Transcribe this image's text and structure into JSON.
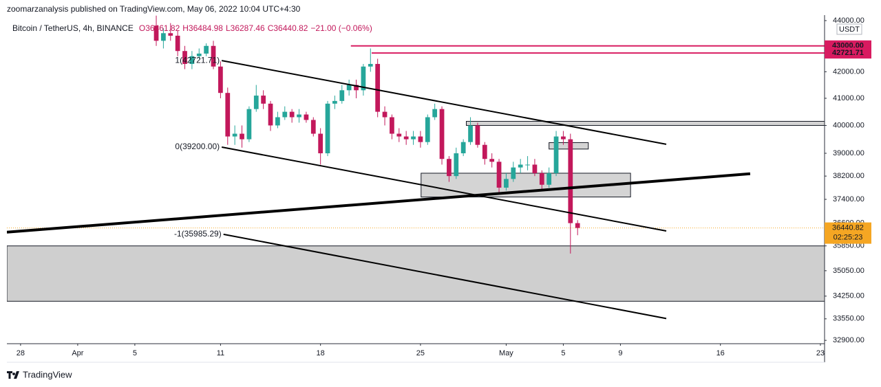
{
  "header": "zoomarzanalysis published on TradingView.com, May 06, 2022 10:04 UTC+4:30",
  "footer": "TradingView",
  "chart_data": {
    "type": "candlestick",
    "symbol": "Bitcoin / TetherUS, 4h, BINANCE",
    "ohlc_text": [
      "O36461.82",
      "H36484.98",
      "L36287.46",
      "C36440.82"
    ],
    "change_text": "−21.00 (−0.06%)",
    "currency": "USDT",
    "log_scale": true,
    "up_color": "#26a69a",
    "down_color": "#c2185b",
    "x": [
      "2022-04-06 12:00",
      "2022-04-07 00:00",
      "2022-04-07 12:00",
      "2022-04-08 00:00",
      "2022-04-08 12:00",
      "2022-04-09 00:00",
      "2022-04-09 12:00",
      "2022-04-10 00:00",
      "2022-04-10 12:00",
      "2022-04-11 00:00",
      "2022-04-11 12:00",
      "2022-04-12 00:00",
      "2022-04-12 12:00",
      "2022-04-13 00:00",
      "2022-04-13 12:00",
      "2022-04-14 00:00",
      "2022-04-14 12:00",
      "2022-04-15 00:00",
      "2022-04-15 12:00",
      "2022-04-16 00:00",
      "2022-04-16 12:00",
      "2022-04-17 00:00",
      "2022-04-17 12:00",
      "2022-04-18 00:00",
      "2022-04-18 12:00",
      "2022-04-19 00:00",
      "2022-04-19 12:00",
      "2022-04-20 00:00",
      "2022-04-20 12:00",
      "2022-04-21 00:00",
      "2022-04-21 12:00",
      "2022-04-22 00:00",
      "2022-04-22 12:00",
      "2022-04-23 00:00",
      "2022-04-23 12:00",
      "2022-04-24 00:00",
      "2022-04-24 12:00",
      "2022-04-25 00:00",
      "2022-04-25 12:00",
      "2022-04-26 00:00",
      "2022-04-26 12:00",
      "2022-04-27 00:00",
      "2022-04-27 12:00",
      "2022-04-28 00:00",
      "2022-04-28 12:00",
      "2022-04-29 00:00",
      "2022-04-29 12:00",
      "2022-04-30 00:00",
      "2022-04-30 12:00",
      "2022-05-01 00:00",
      "2022-05-01 12:00",
      "2022-05-02 00:00",
      "2022-05-02 12:00",
      "2022-05-03 00:00",
      "2022-05-03 12:00",
      "2022-05-04 00:00",
      "2022-05-04 12:00",
      "2022-05-05 00:00",
      "2022-05-05 12:00",
      "2022-05-06 00:00"
    ],
    "open": [
      43800,
      43200,
      43500,
      43400,
      42800,
      42300,
      42600,
      42700,
      43000,
      42200,
      41200,
      39600,
      39700,
      39500,
      40600,
      41100,
      40800,
      40000,
      40300,
      40500,
      40300,
      40400,
      40200,
      39700,
      39000,
      40800,
      40900,
      41300,
      41500,
      41300,
      42200,
      42300,
      40500,
      40300,
      39700,
      39600,
      39500,
      39600,
      39400,
      40300,
      40600,
      38800,
      38200,
      39000,
      39400,
      40000,
      39300,
      38800,
      38700,
      37800,
      38100,
      38500,
      38600,
      38600,
      38300,
      37900,
      38300,
      39600,
      39500,
      36600
    ],
    "high": [
      44200,
      43700,
      43900,
      43600,
      43000,
      42800,
      42900,
      43100,
      43200,
      42400,
      41400,
      40000,
      40000,
      40700,
      41500,
      41300,
      40900,
      40500,
      40700,
      40600,
      40600,
      40500,
      40300,
      39900,
      40900,
      41100,
      41500,
      41700,
      41700,
      42300,
      42900,
      42500,
      40700,
      40400,
      39900,
      39800,
      39800,
      39800,
      40400,
      40800,
      40700,
      38900,
      39200,
      39500,
      40300,
      40100,
      39400,
      39000,
      38800,
      38300,
      38700,
      38800,
      38900,
      38800,
      38400,
      38500,
      39800,
      39800,
      39700,
      36700
    ],
    "low": [
      43000,
      42900,
      43200,
      42600,
      42100,
      42100,
      42500,
      42600,
      42100,
      41000,
      39300,
      39300,
      39200,
      39400,
      40500,
      40600,
      39800,
      39900,
      40200,
      40100,
      40100,
      40100,
      39600,
      38600,
      38900,
      40600,
      40800,
      41100,
      41000,
      41100,
      42000,
      40300,
      40000,
      39500,
      39400,
      39300,
      39300,
      39200,
      39300,
      40200,
      38600,
      38000,
      38100,
      38900,
      39300,
      39200,
      38600,
      38500,
      37600,
      37700,
      38000,
      38300,
      38400,
      38200,
      37700,
      37800,
      38200,
      39300,
      35600,
      36200
    ],
    "close": [
      43200,
      43500,
      43400,
      42800,
      42300,
      42600,
      42700,
      43000,
      42200,
      41200,
      39600,
      39700,
      39500,
      40600,
      41100,
      40800,
      40000,
      40300,
      40500,
      40300,
      40400,
      40200,
      39700,
      39000,
      40800,
      40900,
      41300,
      41500,
      41300,
      42200,
      42300,
      40500,
      40300,
      39700,
      39600,
      39500,
      39600,
      39400,
      40300,
      40600,
      38800,
      38200,
      39000,
      39400,
      40000,
      39300,
      38800,
      38700,
      37800,
      38100,
      38500,
      38600,
      38600,
      38300,
      37900,
      38300,
      39600,
      39500,
      36600,
      36440.82
    ],
    "last_price": {
      "value": 36440.82,
      "label": "36440.82",
      "countdown": "02:25:23",
      "color": "#f5a623"
    },
    "xlim": [
      "2022-03-27 01:00",
      "2022-05-23 07:00"
    ],
    "xticks": [
      {
        "value": "2022-03-28 00:00",
        "label": "28"
      },
      {
        "value": "2022-04-01 00:00",
        "label": "Apr"
      },
      {
        "value": "2022-04-05 00:00",
        "label": "5"
      },
      {
        "value": "2022-04-11 00:00",
        "label": "11"
      },
      {
        "value": "2022-04-18 00:00",
        "label": "18"
      },
      {
        "value": "2022-04-25 00:00",
        "label": "25"
      },
      {
        "value": "2022-05-01 00:00",
        "label": "May"
      },
      {
        "value": "2022-05-05 00:00",
        "label": "5"
      },
      {
        "value": "2022-05-09 00:00",
        "label": "9"
      },
      {
        "value": "2022-05-16 00:00",
        "label": "16"
      },
      {
        "value": "2022-05-23 00:00",
        "label": "23"
      }
    ],
    "ylim": [
      32800,
      44220
    ],
    "yticks": [
      {
        "value": 44000,
        "label": "44000.00"
      },
      {
        "value": 42000,
        "label": "42000.00"
      },
      {
        "value": 41000,
        "label": "41000.00"
      },
      {
        "value": 40000,
        "label": "40000.00"
      },
      {
        "value": 39000,
        "label": "39000.00"
      },
      {
        "value": 38200,
        "label": "38200.00"
      },
      {
        "value": 37400,
        "label": "37400.00"
      },
      {
        "value": 36600,
        "label": "36600.00"
      },
      {
        "value": 35850,
        "label": "35850.00"
      },
      {
        "value": 35050,
        "label": "35050.00"
      },
      {
        "value": 34250,
        "label": "34250.00"
      },
      {
        "value": 33550,
        "label": "33550.00"
      },
      {
        "value": 32900,
        "label": "32900.00"
      }
    ],
    "drawings": [
      {
        "kind": "rect",
        "from": "2022-03-27 01:00",
        "to": "2022-05-23 07:00",
        "top": 35850,
        "bottom": 34090,
        "color": "#cfcfcf"
      },
      {
        "kind": "rect",
        "from": "2022-04-25 01:00",
        "to": "2022-05-09 17:00",
        "top": 38300,
        "bottom": 37480,
        "color": "#d4d4d4"
      },
      {
        "kind": "rect",
        "from": "2022-05-04 00:00",
        "to": "2022-05-06 18:00",
        "top": 39380,
        "bottom": 39150,
        "color": "#d4d4d4"
      },
      {
        "kind": "rect",
        "from": "2022-04-28 05:00",
        "to": "2022-05-23 07:00",
        "top": 40150,
        "bottom": 40000,
        "color": "#d4d4d4"
      },
      {
        "kind": "line",
        "width": 4,
        "from": "2022-03-27 01:00",
        "to": "2022-05-18 02:00",
        "start": 36300,
        "end": 38280
      },
      {
        "kind": "line",
        "width": 2,
        "from": "2022-04-11 02:00",
        "to": "2022-05-12 05:00",
        "start": 42430,
        "end": 39320,
        "label": "1(42721.71)"
      },
      {
        "kind": "line",
        "width": 2,
        "from": "2022-04-11 02:00",
        "to": "2022-05-12 05:00",
        "start": 39220,
        "end": 36340,
        "label": "0(39200.00)"
      },
      {
        "kind": "line",
        "width": 2,
        "from": "2022-04-11 05:00",
        "to": "2022-05-12 05:00",
        "start": 36230,
        "end": 33560,
        "label": "-1(35985.29)"
      },
      {
        "kind": "hline",
        "from": "2022-04-20 03:00",
        "price": 43000,
        "label": "43000.00",
        "color": "#d81b60"
      },
      {
        "kind": "hline",
        "from": "2022-04-21 14:00",
        "price": 42721.71,
        "label": "42721.71",
        "color": "#d81b60"
      }
    ]
  }
}
